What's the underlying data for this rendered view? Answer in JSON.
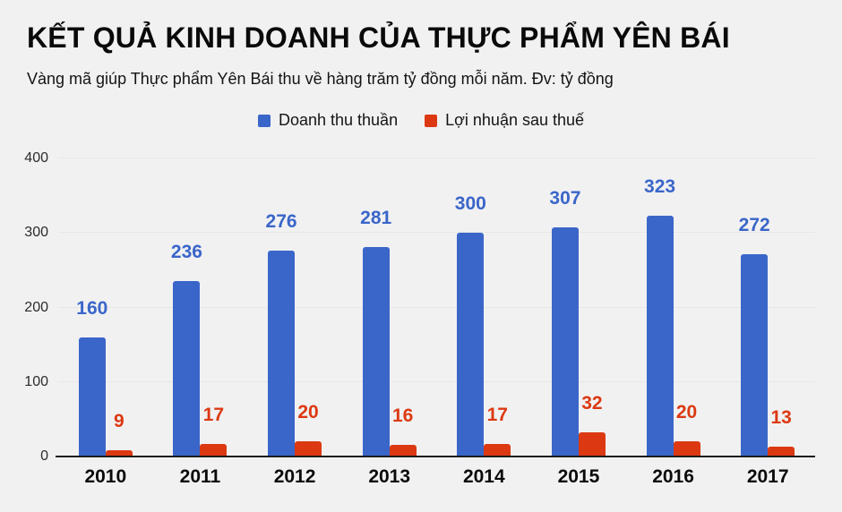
{
  "header": {
    "title": "KẾT QUẢ KINH DOANH CỦA THỰC PHẨM YÊN BÁI",
    "subtitle": "Vàng mã giúp Thực phẩm Yên Bái thu về hàng trăm tỷ đồng mỗi năm. Đv: tỷ đồng"
  },
  "legend": [
    {
      "label": "Doanh thu thuần",
      "color": "#3a66c9"
    },
    {
      "label": "Lợi nhuận sau thuế",
      "color": "#dc3912"
    }
  ],
  "chart_data": {
    "type": "bar",
    "title": "KẾT QUẢ KINH DOANH CỦA THỰC PHẨM YÊN BÁI",
    "subtitle": "Vàng mã giúp Thực phẩm Yên Bái thu về hàng trăm tỷ đồng mỗi năm. Đv: tỷ đồng",
    "unit": "tỷ đồng",
    "categories": [
      "2010",
      "2011",
      "2012",
      "2013",
      "2014",
      "2015",
      "2016",
      "2017"
    ],
    "series": [
      {
        "name": "Doanh thu thuần",
        "color": "#3a66c9",
        "values": [
          160,
          236,
          276,
          281,
          300,
          307,
          323,
          272
        ]
      },
      {
        "name": "Lợi nhuận sau thuế",
        "color": "#dc3912",
        "values": [
          9,
          17,
          20,
          16,
          17,
          32,
          20,
          13
        ]
      }
    ],
    "xlabel": "",
    "ylabel": "",
    "ylim": [
      0,
      400
    ],
    "yticks": [
      0,
      100,
      200,
      300,
      400
    ],
    "grid": true,
    "legend_position": "top",
    "value_labels": true
  },
  "colors": {
    "background": "#f1f1f2",
    "axis_line": "#1c1c1c",
    "gridline": "#e7e7e7",
    "title_text": "#0a0a0a",
    "tick_text": "#2b2b2b"
  }
}
